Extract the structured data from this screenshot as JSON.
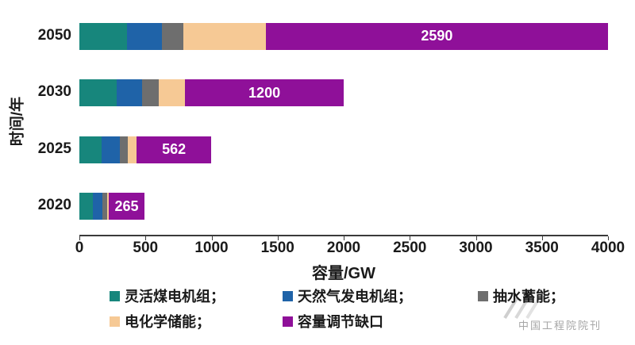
{
  "chart_data": {
    "type": "bar",
    "orientation": "horizontal",
    "title": "",
    "xlabel": "容量/GW",
    "ylabel": "时间/年",
    "xlim": [
      0,
      4000
    ],
    "xticks": [
      "0",
      "500",
      "1000",
      "1500",
      "2000",
      "2500",
      "3000",
      "3500",
      "4000"
    ],
    "categories": [
      "2050",
      "2030",
      "2025",
      "2020"
    ],
    "series": [
      {
        "name": "灵活煤电机组",
        "color": "#17867C",
        "values": [
          360,
          285,
          170,
          105
        ]
      },
      {
        "name": "天然气发电机组",
        "color": "#1F63A8",
        "values": [
          265,
          190,
          135,
          70
        ]
      },
      {
        "name": "抽水蓄能",
        "color": "#6E6E6E",
        "values": [
          160,
          125,
          60,
          35
        ]
      },
      {
        "name": "电化学储能",
        "color": "#F6C995",
        "values": [
          625,
          200,
          70,
          15
        ]
      },
      {
        "name": "容量调节缺口",
        "color": "#8F1099",
        "values": [
          2590,
          1200,
          562,
          265
        ]
      }
    ],
    "labeled_series": "容量调节缺口",
    "data_labels": [
      "2590",
      "1200",
      "562",
      "265"
    ],
    "grid": false,
    "legend_position": "bottom"
  },
  "legend": {
    "items": [
      {
        "label": "灵活煤电机组；",
        "color": "#17867C"
      },
      {
        "label": "天然气发电机组；",
        "color": "#1F63A8"
      },
      {
        "label": "抽水蓄能；",
        "color": "#6E6E6E"
      },
      {
        "label": "电化学储能；",
        "color": "#F6C995"
      },
      {
        "label": "容量调节缺口",
        "color": "#8F1099"
      }
    ]
  },
  "watermark": {
    "text": "中国工程院院刊"
  }
}
